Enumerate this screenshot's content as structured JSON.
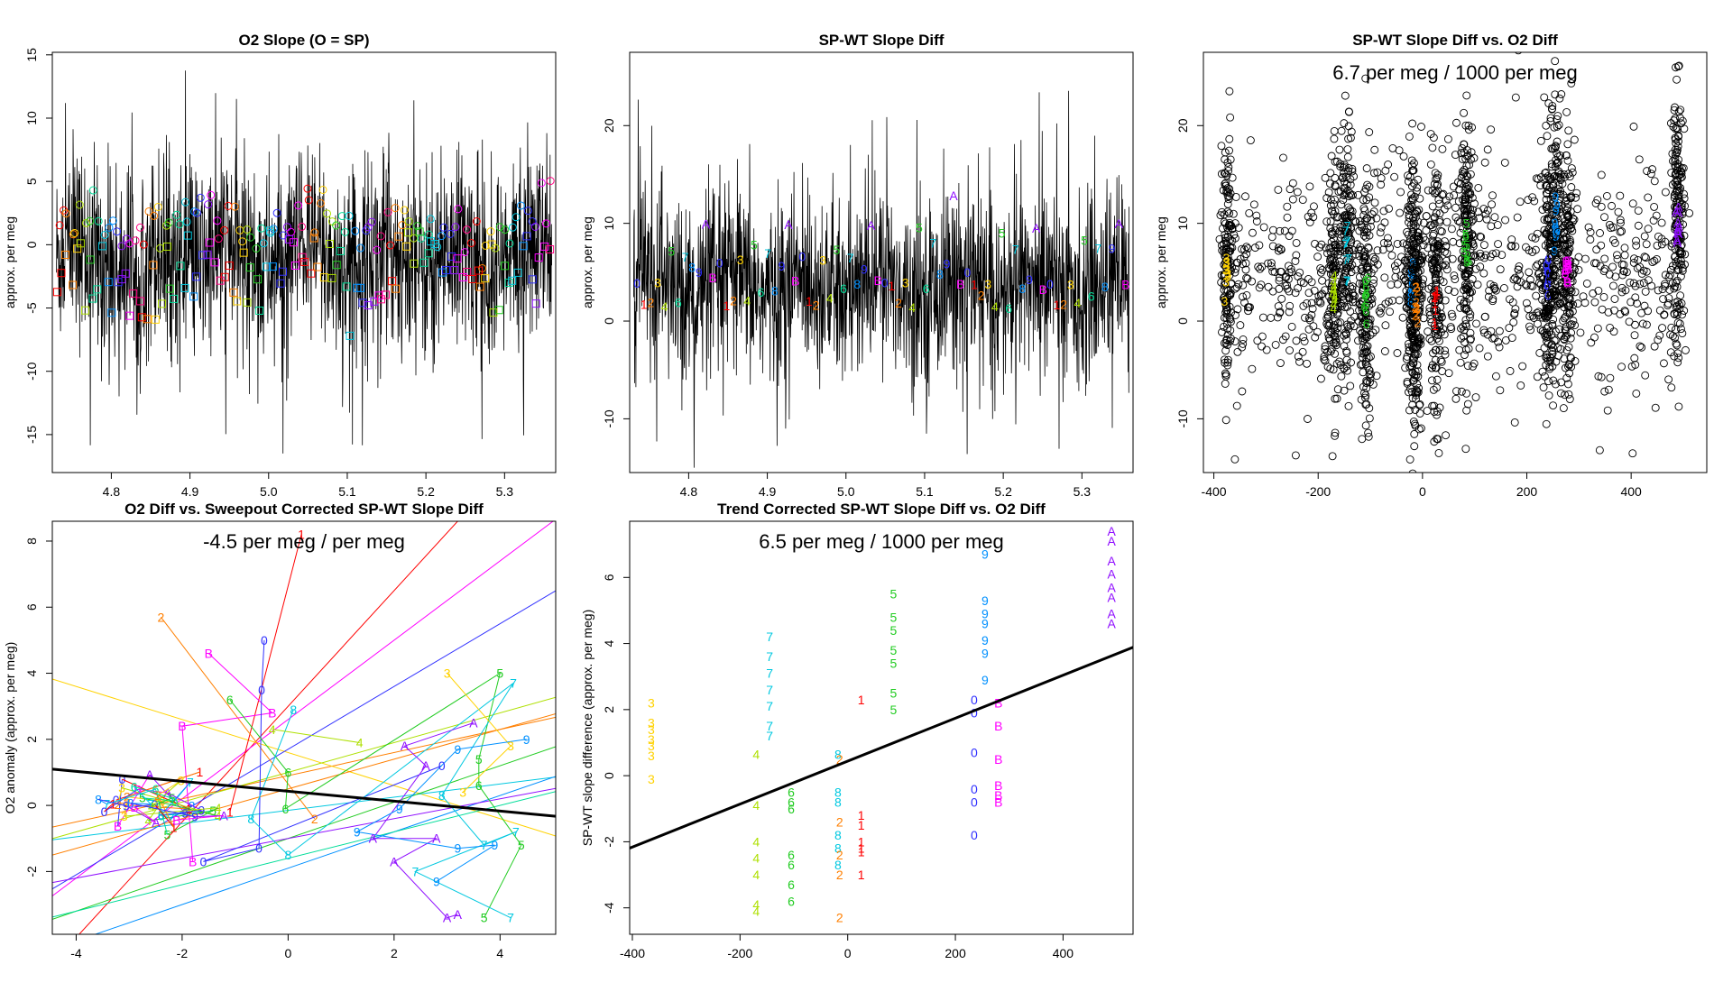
{
  "chart_data": [
    {
      "id": "p1",
      "type": "line",
      "title": "O2 Slope (O = SP)",
      "ylabel": "approx. per meg",
      "xlabel": "",
      "xlim": [
        4.725,
        5.365
      ],
      "ylim": [
        -18.0,
        15.2
      ],
      "x_ticks": [
        4.8,
        4.9,
        5.0,
        5.1,
        5.2,
        5.3
      ],
      "x_tick_labels": [
        "4.8",
        "4.9",
        "5.0",
        "5.1",
        "5.2",
        "5.3"
      ],
      "y_ticks": [
        -15,
        -10,
        -5,
        0,
        5,
        10,
        15
      ],
      "y_tick_labels": [
        "-15",
        "-10",
        "-5",
        "0",
        "5",
        "10",
        "15"
      ],
      "noise_band": {
        "x_range": [
          4.73,
          5.36
        ],
        "center": -1.0,
        "typical_low": -8,
        "typical_high": 6,
        "extreme_low": -16.5,
        "extreme_high": 14
      },
      "series": [
        {
          "name": "circles",
          "marker": "circle",
          "center": 1.5,
          "spread": 2.0
        },
        {
          "name": "squares",
          "marker": "square",
          "center": -2.5,
          "spread": 3.0
        }
      ],
      "palette": [
        "#ff0000",
        "#ff7f00",
        "#ffd200",
        "#aee000",
        "#22cc22",
        "#00dd99",
        "#00c8e0",
        "#0090ff",
        "#3030ff",
        "#9010ff",
        "#ff00ff",
        "#ff0080"
      ]
    },
    {
      "id": "p2",
      "type": "line",
      "title": "SP-WT Slope Diff",
      "ylabel": "approx. per meg",
      "xlabel": "",
      "xlim": [
        4.725,
        5.365
      ],
      "ylim": [
        -15.5,
        27.5
      ],
      "x_ticks": [
        4.8,
        4.9,
        5.0,
        5.1,
        5.2,
        5.3
      ],
      "x_tick_labels": [
        "4.8",
        "4.9",
        "5.0",
        "5.1",
        "5.2",
        "5.3"
      ],
      "y_ticks": [
        -10,
        0,
        10,
        20
      ],
      "y_tick_labels": [
        "-10",
        "0",
        "10",
        "20"
      ],
      "noise_band": {
        "x_range": [
          4.73,
          5.36
        ],
        "center": 3.5,
        "typical_low": -5,
        "typical_high": 12,
        "extreme_low": -15,
        "extreme_high": 24
      },
      "digit_labels": [
        "0",
        "1",
        "2",
        "3",
        "4",
        "5",
        "6",
        "7",
        "8",
        "9",
        "A",
        "B"
      ],
      "digit_levels": [
        5.0,
        2.0,
        2.0,
        5.0,
        2.0,
        8.5,
        3.0,
        7.5,
        4.0,
        5.5,
        10.5,
        4.0
      ],
      "digit_colors": [
        "#3030ff",
        "#ff0000",
        "#ff7f00",
        "#ffd200",
        "#aee000",
        "#22cc22",
        "#00dd99",
        "#00c8e0",
        "#0090ff",
        "#3030ff",
        "#9010ff",
        "#ff00ff"
      ]
    },
    {
      "id": "p3",
      "type": "scatter",
      "title": "SP-WT Slope Diff vs. O2 Diff",
      "annotation": "6.7 per meg / 1000 per meg",
      "ylabel": "approx. per meg",
      "xlabel": "",
      "xlim": [
        -420,
        545
      ],
      "ylim": [
        -15.5,
        27.5
      ],
      "x_ticks": [
        -400,
        -200,
        0,
        200,
        400
      ],
      "x_tick_labels": [
        "-400",
        "-200",
        "0",
        "200",
        "400"
      ],
      "y_ticks": [
        -10,
        0,
        10,
        20
      ],
      "y_tick_labels": [
        "-10",
        "0",
        "10",
        "20"
      ],
      "clusters": [
        {
          "x": -375,
          "label": "3",
          "color": "#ffd200",
          "center": 5.5,
          "width": 6,
          "count": 140,
          "sd": 6.5
        },
        {
          "x": -170,
          "label": "4",
          "color": "#aee000",
          "center": 3.0,
          "width": 6,
          "count": 140,
          "sd": 6.0
        },
        {
          "x": -145,
          "label": "7",
          "color": "#00c8e0",
          "center": 7.0,
          "width": 6,
          "count": 140,
          "sd": 6.5
        },
        {
          "x": -108,
          "label": "6",
          "color": "#22cc22",
          "center": 2.0,
          "width": 6,
          "count": 140,
          "sd": 6.0
        },
        {
          "x": -20,
          "label": "8",
          "color": "#0090ff",
          "center": 3.5,
          "width": 6,
          "count": 160,
          "sd": 6.5
        },
        {
          "x": -12,
          "label": "2",
          "color": "#ff7f00",
          "center": 2.0,
          "width": 6,
          "count": 140,
          "sd": 6.0
        },
        {
          "x": 25,
          "label": "1",
          "color": "#ff0000",
          "center": 2.0,
          "width": 6,
          "count": 130,
          "sd": 6.0
        },
        {
          "x": 85,
          "label": "5",
          "color": "#22cc22",
          "center": 8.5,
          "width": 6,
          "count": 150,
          "sd": 6.5
        },
        {
          "x": 240,
          "label": "0",
          "color": "#3030ff",
          "center": 4.5,
          "width": 6,
          "count": 150,
          "sd": 6.5
        },
        {
          "x": 255,
          "label": "9",
          "color": "#0090ff",
          "center": 9.5,
          "width": 6,
          "count": 150,
          "sd": 6.5
        },
        {
          "x": 278,
          "label": "B",
          "color": "#ff00ff",
          "center": 4.5,
          "width": 6,
          "count": 150,
          "sd": 6.0
        },
        {
          "x": 490,
          "label": "A",
          "color": "#9010ff",
          "center": 10.5,
          "width": 6,
          "count": 170,
          "sd": 6.5
        }
      ],
      "background_scatter": {
        "count": 900,
        "x_range": [
          -380,
          500
        ],
        "y_center": 5,
        "y_sd": 6
      }
    },
    {
      "id": "p4",
      "type": "scatter",
      "title": "O2 Diff vs. Sweepout Corrected SP-WT Slope Diff",
      "annotation": "-4.5 per meg / per meg",
      "ylabel": "O2 anomaly (approx. per meg)",
      "xlabel": "",
      "xlim": [
        -4.45,
        5.05
      ],
      "ylim": [
        -3.9,
        8.6
      ],
      "x_ticks": [
        -4,
        -2,
        0,
        2,
        4
      ],
      "x_tick_labels": [
        "-4",
        "-2",
        "0",
        "2",
        "4"
      ],
      "y_ticks": [
        -2,
        0,
        2,
        4,
        6,
        8
      ],
      "y_tick_labels": [
        "-2",
        "0",
        "2",
        "4",
        "6",
        "8"
      ],
      "regression": {
        "intercept": 0.43,
        "slope": -0.15
      },
      "group_lines": [
        {
          "color": "#ff0000",
          "intercept": 3.0,
          "slope": 1.75
        },
        {
          "color": "#ff00ff",
          "intercept": 2.6,
          "slope": 1.2
        },
        {
          "color": "#ff7f00",
          "intercept": 0.9,
          "slope": 0.35
        },
        {
          "color": "#ffd200",
          "intercept": 1.6,
          "slope": -0.5
        },
        {
          "color": "#3030ff",
          "intercept": 1.7,
          "slope": 0.95
        },
        {
          "color": "#aee000",
          "intercept": 1.0,
          "slope": 0.45
        },
        {
          "color": "#00c8e0",
          "intercept": -0.15,
          "slope": 0.2
        },
        {
          "color": "#22cc22",
          "intercept": -1.0,
          "slope": 0.55
        },
        {
          "color": "#0090ff",
          "intercept": -1.9,
          "slope": 0.55
        },
        {
          "color": "#9010ff",
          "intercept": -1.0,
          "slope": 0.3
        },
        {
          "color": "#00dd99",
          "intercept": -1.6,
          "slope": 0.4
        },
        {
          "color": "#ff7f00",
          "intercept": 0.5,
          "slope": 0.45
        }
      ],
      "points": [
        {
          "label": "1",
          "color": "#ff0000",
          "x": 0.25,
          "y": 8.2
        },
        {
          "label": "2",
          "color": "#ff7f00",
          "x": -2.4,
          "y": 5.7
        },
        {
          "label": "B",
          "color": "#ff00ff",
          "x": -1.5,
          "y": 4.6
        },
        {
          "label": "0",
          "color": "#3030ff",
          "x": -0.45,
          "y": 5.0
        },
        {
          "label": "0",
          "color": "#3030ff",
          "x": -0.5,
          "y": 3.5
        },
        {
          "label": "6",
          "color": "#22cc22",
          "x": -1.1,
          "y": 3.2
        },
        {
          "label": "B",
          "color": "#ff00ff",
          "x": -0.3,
          "y": 2.8
        },
        {
          "label": "8",
          "color": "#00c8e0",
          "x": 0.1,
          "y": 2.9
        },
        {
          "label": "4",
          "color": "#aee000",
          "x": -0.3,
          "y": 2.3
        },
        {
          "label": "B",
          "color": "#ff00ff",
          "x": -2.0,
          "y": 2.4
        },
        {
          "label": "6",
          "color": "#22cc22",
          "x": 0.0,
          "y": 1.0
        },
        {
          "label": "2",
          "color": "#ff7f00",
          "x": 0.5,
          "y": -0.4
        },
        {
          "label": "8",
          "color": "#00c8e0",
          "x": -0.7,
          "y": -0.4
        },
        {
          "label": "6",
          "color": "#22cc22",
          "x": -0.05,
          "y": -0.1
        },
        {
          "label": "8",
          "color": "#00c8e0",
          "x": 0.0,
          "y": -1.5
        },
        {
          "label": "0",
          "color": "#3030ff",
          "x": -0.55,
          "y": -1.3
        },
        {
          "label": "0",
          "color": "#3030ff",
          "x": -1.6,
          "y": -1.7
        },
        {
          "label": "B",
          "color": "#ff00ff",
          "x": -1.8,
          "y": -1.7
        },
        {
          "label": "1",
          "color": "#ff0000",
          "x": -1.1,
          "y": -0.2
        },
        {
          "label": "4",
          "color": "#aee000",
          "x": 1.35,
          "y": 1.9
        },
        {
          "label": "3",
          "color": "#ffd200",
          "x": 3.0,
          "y": 4.0
        },
        {
          "label": "5",
          "color": "#22cc22",
          "x": 4.0,
          "y": 4.0
        },
        {
          "label": "7",
          "color": "#00c8e0",
          "x": 4.25,
          "y": 3.7
        },
        {
          "label": "A",
          "color": "#9010ff",
          "x": 3.5,
          "y": 2.5
        },
        {
          "label": "9",
          "color": "#0090ff",
          "x": 4.5,
          "y": 2.0
        },
        {
          "label": "3",
          "color": "#ffd200",
          "x": 4.2,
          "y": 1.8
        },
        {
          "label": "A",
          "color": "#9010ff",
          "x": 2.2,
          "y": 1.8
        },
        {
          "label": "9",
          "color": "#0090ff",
          "x": 3.2,
          "y": 1.7
        },
        {
          "label": "5",
          "color": "#22cc22",
          "x": 3.6,
          "y": 1.4
        },
        {
          "label": "0",
          "color": "#3030ff",
          "x": 2.9,
          "y": 1.2
        },
        {
          "label": "A",
          "color": "#9010ff",
          "x": 2.6,
          "y": 1.2
        },
        {
          "label": "6",
          "color": "#22cc22",
          "x": 3.6,
          "y": 0.6
        },
        {
          "label": "3",
          "color": "#ffd200",
          "x": 3.3,
          "y": 0.4
        },
        {
          "label": "8",
          "color": "#00c8e0",
          "x": 2.9,
          "y": 0.3
        },
        {
          "label": "9",
          "color": "#0090ff",
          "x": 2.1,
          "y": -0.1
        },
        {
          "label": "9",
          "color": "#0090ff",
          "x": 1.3,
          "y": -0.8
        },
        {
          "label": "A",
          "color": "#9010ff",
          "x": 1.6,
          "y": -1.0
        },
        {
          "label": "A",
          "color": "#9010ff",
          "x": 2.8,
          "y": -1.0
        },
        {
          "label": "9",
          "color": "#0090ff",
          "x": 3.2,
          "y": -1.3
        },
        {
          "label": "9",
          "color": "#0090ff",
          "x": 3.9,
          "y": -1.2
        },
        {
          "label": "7",
          "color": "#00c8e0",
          "x": 3.7,
          "y": -1.2
        },
        {
          "label": "7",
          "color": "#00c8e0",
          "x": 4.3,
          "y": -0.8
        },
        {
          "label": "5",
          "color": "#22cc22",
          "x": 4.4,
          "y": -1.2
        },
        {
          "label": "A",
          "color": "#9010ff",
          "x": 2.0,
          "y": -1.7
        },
        {
          "label": "7",
          "color": "#00c8e0",
          "x": 2.4,
          "y": -2.0
        },
        {
          "label": "9",
          "color": "#0090ff",
          "x": 2.8,
          "y": -2.3
        },
        {
          "label": "A",
          "color": "#9010ff",
          "x": 3.0,
          "y": -3.4
        },
        {
          "label": "A",
          "color": "#9010ff",
          "x": 3.2,
          "y": -3.3
        },
        {
          "label": "5",
          "color": "#22cc22",
          "x": 3.7,
          "y": -3.4
        },
        {
          "label": "7",
          "color": "#00c8e0",
          "x": 4.2,
          "y": -3.4
        }
      ],
      "left_cluster": {
        "x_range": [
          -3.6,
          -1.2
        ],
        "y_center": 0.0,
        "y_sd": 0.45,
        "count": 48,
        "labels": [
          "0",
          "1",
          "2",
          "3",
          "4",
          "5",
          "6",
          "7",
          "8",
          "9",
          "A",
          "B"
        ]
      }
    },
    {
      "id": "p5",
      "type": "scatter",
      "title": "Trend Corrected SP-WT Slope Diff vs. O2 Diff",
      "annotation": "6.5 per meg / 1000 per meg",
      "ylabel": "SP-WT slope difference (approx. per meg)",
      "xlabel": "",
      "xlim": [
        -405,
        530
      ],
      "ylim": [
        -4.8,
        7.7
      ],
      "x_ticks": [
        -400,
        -200,
        0,
        200,
        400
      ],
      "x_tick_labels": [
        "-400",
        "-200",
        "0",
        "200",
        "400"
      ],
      "y_ticks": [
        -4,
        -2,
        0,
        2,
        4,
        6
      ],
      "y_tick_labels": [
        "-4",
        "-2",
        "0",
        "2",
        "4",
        "6"
      ],
      "regression": {
        "intercept": 0.44,
        "slope": 0.0065
      },
      "columns": [
        {
          "x": -365,
          "label": "3",
          "color": "#ffd200",
          "values": [
            2.2,
            1.6,
            1.4,
            1.1,
            0.9,
            0.6,
            -0.1
          ]
        },
        {
          "x": -170,
          "label": "4",
          "color": "#aee000",
          "values": [
            0.65,
            -0.9,
            -2.0,
            -2.5,
            -3.0,
            -3.9,
            -4.1
          ]
        },
        {
          "x": -145,
          "label": "7",
          "color": "#00c8e0",
          "values": [
            4.2,
            3.6,
            3.1,
            2.6,
            2.1,
            1.5,
            1.2
          ]
        },
        {
          "x": -105,
          "label": "6",
          "color": "#22cc22",
          "values": [
            -0.5,
            -0.8,
            -1.0,
            -2.4,
            -2.7,
            -3.3,
            -3.8
          ]
        },
        {
          "x": -18,
          "label": "8",
          "color": "#00c8e0",
          "values": [
            0.65,
            -0.5,
            -0.8,
            -1.8,
            -2.2,
            -2.7
          ]
        },
        {
          "x": -15,
          "label": "2",
          "color": "#ff7f00",
          "values": [
            0.5,
            -1.4,
            -2.4,
            -3.0,
            -4.3
          ]
        },
        {
          "x": 25,
          "label": "1",
          "color": "#ff0000",
          "values": [
            2.3,
            -1.2,
            -1.5,
            -2.0,
            -2.2,
            -2.3,
            -3.0
          ]
        },
        {
          "x": 85,
          "label": "5",
          "color": "#22cc22",
          "values": [
            5.5,
            4.8,
            4.4,
            3.8,
            3.4,
            2.5,
            2.0
          ]
        },
        {
          "x": 235,
          "label": "0",
          "color": "#3030ff",
          "values": [
            2.3,
            1.9,
            0.7,
            -0.4,
            -0.8,
            -1.8
          ]
        },
        {
          "x": 255,
          "label": "9",
          "color": "#0090ff",
          "values": [
            6.7,
            5.3,
            4.9,
            4.6,
            4.1,
            3.7,
            2.9
          ]
        },
        {
          "x": 280,
          "label": "B",
          "color": "#ff00ff",
          "values": [
            2.2,
            1.5,
            0.5,
            -0.3,
            -0.6,
            -0.8
          ]
        },
        {
          "x": 490,
          "label": "A",
          "color": "#9010ff",
          "values": [
            7.4,
            7.1,
            6.5,
            6.1,
            5.7,
            5.4,
            4.9,
            4.6
          ]
        }
      ]
    }
  ]
}
